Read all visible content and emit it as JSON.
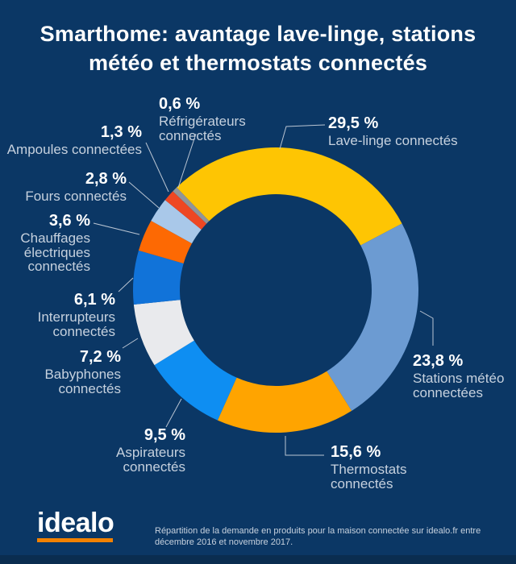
{
  "title": {
    "line1": "Smarthome: avantage lave-linge, stations",
    "line2": "météo et thermostats connectés"
  },
  "chart_data": {
    "type": "pie",
    "variant": "donut",
    "title": "Smarthome: avantage lave-linge, stations météo et thermostats connectés",
    "unit": "%",
    "start_angle": -44,
    "center": [
      342,
      360
    ],
    "outer_radius": 177,
    "inner_radius": 119,
    "legend_position": "around-labels",
    "segments": [
      {
        "id": "lave-linge",
        "name": "Lave-linge connectés",
        "value": 29.5,
        "pct_label": "29,5 %",
        "name_label": "Lave-linge connectés",
        "color": "#fec503"
      },
      {
        "id": "stations-meteo",
        "name": "Stations météo connectées",
        "value": 23.8,
        "pct_label": "23,8 %",
        "name_label": "Stations météo\nconnectées",
        "color": "#6c9bd2"
      },
      {
        "id": "thermostats",
        "name": "Thermostats connectés",
        "value": 15.6,
        "pct_label": "15,6 %",
        "name_label": "Thermostats\nconnectés",
        "color": "#ffa400"
      },
      {
        "id": "aspirateurs",
        "name": "Aspirateurs connectés",
        "value": 9.5,
        "pct_label": "9,5 %",
        "name_label": "Aspirateurs\nconnectés",
        "color": "#0e8ef2"
      },
      {
        "id": "babyphones",
        "name": "Babyphones connectés",
        "value": 7.2,
        "pct_label": "7,2 %",
        "name_label": "Babyphones\nconnectés",
        "color": "#e9eaed"
      },
      {
        "id": "interrupteurs",
        "name": "Interrupteurs connectés",
        "value": 6.1,
        "pct_label": "6,1 %",
        "name_label": "Interrupteurs\nconnectés",
        "color": "#1173d9"
      },
      {
        "id": "chauffages",
        "name": "Chauffages électriques connectés",
        "value": 3.6,
        "pct_label": "3,6 %",
        "name_label": "Chauffages\nélectriques\nconnectés",
        "color": "#fd6903"
      },
      {
        "id": "fours",
        "name": "Fours connectés",
        "value": 2.8,
        "pct_label": "2,8 %",
        "name_label": "Fours connectés",
        "color": "#a9c8e9"
      },
      {
        "id": "ampoules",
        "name": "Ampoules connectées",
        "value": 1.3,
        "pct_label": "1,3 %",
        "name_label": "Ampoules connectées",
        "color": "#ee4723"
      },
      {
        "id": "refrigerateurs",
        "name": "Réfrigérateurs connectés",
        "value": 0.6,
        "pct_label": "0,6 %",
        "name_label": "Réfrigérateurs\nconnectés",
        "color": "#90959a"
      }
    ]
  },
  "colors": {
    "background": "#0b3765",
    "title_text": "#ffffff",
    "label_pct": "#ffffff",
    "label_name": "#c6d1de",
    "leader_line": "#b9c4d2",
    "logo_underline": "#f28100"
  },
  "footer": {
    "logo_text": "idealo",
    "source_note": "Répartition de la demande en produits pour la maison connectée sur idealo.fr entre décembre 2016 et novembre 2017."
  }
}
